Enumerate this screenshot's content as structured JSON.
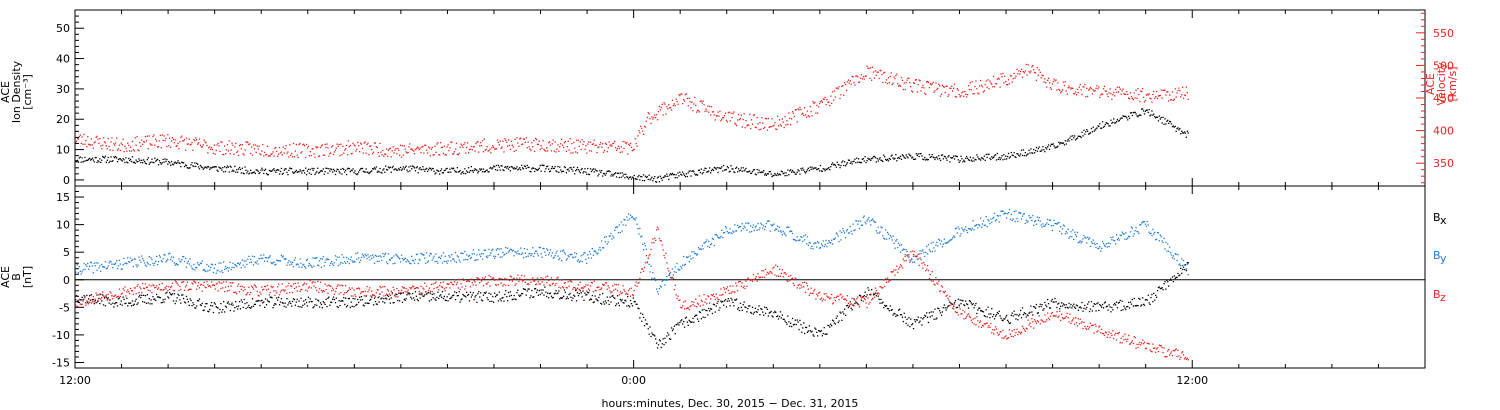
{
  "chart_data": [
    {
      "type": "scatter",
      "panel": "top",
      "xlim_hours": [
        -12.0,
        17.0
      ],
      "left_axis": {
        "label_lines": [
          "ACE",
          "Ion Density",
          "[cm⁻³]"
        ],
        "ylim": [
          -2,
          56
        ],
        "ticks": [
          0,
          10,
          20,
          30,
          40,
          50
        ]
      },
      "right_axis": {
        "label_lines": [
          "ACE",
          "Velocity",
          "[km/s]"
        ],
        "ylim": [
          315,
          585
        ],
        "ticks": [
          350,
          400,
          450,
          500,
          550
        ]
      },
      "series": [
        {
          "axis": "left",
          "color": "#000000",
          "x": [
            -12.0,
            -11.0,
            -10.0,
            -9.0,
            -8.0,
            -7.0,
            -6.0,
            -5.0,
            -4.0,
            -3.0,
            -2.0,
            -1.0,
            0.0,
            0.5,
            1.0,
            2.0,
            3.0,
            4.0,
            5.0,
            6.0,
            7.0,
            8.0,
            9.0,
            10.0,
            11.0,
            11.9
          ],
          "y": [
            7,
            7,
            6,
            4,
            3,
            3,
            3,
            4,
            3,
            4,
            4,
            3,
            1,
            0.5,
            2,
            4,
            2,
            4,
            7,
            8,
            7,
            8,
            11,
            18,
            23,
            15
          ]
        },
        {
          "axis": "right",
          "color": "#e8231f",
          "x": [
            -12.0,
            -11.0,
            -10.0,
            -9.0,
            -8.0,
            -7.0,
            -6.0,
            -5.0,
            -4.0,
            -3.0,
            -2.0,
            -1.0,
            -0.01,
            0.3,
            1.0,
            2.0,
            3.0,
            4.0,
            5.0,
            6.0,
            7.0,
            8.0,
            8.5,
            9.0,
            10.0,
            11.0,
            11.9
          ],
          "y": [
            388,
            378,
            386,
            375,
            372,
            370,
            375,
            370,
            374,
            378,
            380,
            376,
            375,
            420,
            450,
            420,
            410,
            440,
            490,
            470,
            460,
            480,
            495,
            470,
            460,
            455,
            458
          ]
        }
      ]
    },
    {
      "type": "scatter",
      "panel": "bottom",
      "xlim_hours": [
        -12.0,
        17.0
      ],
      "x_tick_labels": [
        {
          "at": -12,
          "label": "12:00"
        },
        {
          "at": 0,
          "label": "0:00"
        },
        {
          "at": 12,
          "label": "12:00"
        }
      ],
      "xlabel": "hours:minutes, Dec. 30, 2015 − Dec. 31, 2015",
      "left_axis": {
        "label_lines": [
          "ACE",
          "B",
          "[nT]"
        ],
        "ylim": [
          -16,
          17
        ],
        "ticks": [
          -15,
          -10,
          -5,
          0,
          5,
          10,
          15
        ]
      },
      "legend": [
        {
          "base": "B",
          "sub": "x",
          "color": "#000000"
        },
        {
          "base": "B",
          "sub": "y",
          "color": "#1f7ad4"
        },
        {
          "base": "B",
          "sub": "z",
          "color": "#e8231f"
        }
      ],
      "series": [
        {
          "name": "Bx",
          "color": "#000000",
          "x": [
            -12.0,
            -11.0,
            -10.0,
            -9.0,
            -8.0,
            -7.0,
            -6.0,
            -5.0,
            -4.0,
            -3.0,
            -2.0,
            -1.0,
            0.0,
            0.5,
            1.0,
            2.0,
            3.0,
            4.0,
            5.0,
            6.0,
            7.0,
            8.0,
            9.0,
            10.0,
            11.0,
            11.9
          ],
          "y": [
            -3,
            -4,
            -3,
            -5,
            -4,
            -4,
            -4,
            -3,
            -3,
            -3,
            -2,
            -3,
            -4,
            -12,
            -8,
            -4,
            -6,
            -10,
            -2,
            -8,
            -4,
            -7,
            -4,
            -5,
            -4,
            3
          ]
        },
        {
          "name": "By",
          "color": "#1f7ad4",
          "x": [
            -12.0,
            -11.0,
            -10.0,
            -9.0,
            -8.0,
            -7.0,
            -6.0,
            -5.0,
            -4.0,
            -3.0,
            -2.0,
            -1.0,
            0.0,
            0.5,
            1.0,
            2.0,
            3.0,
            4.0,
            5.0,
            6.0,
            7.0,
            8.0,
            9.0,
            10.0,
            11.0,
            11.9
          ],
          "y": [
            2,
            3,
            4,
            2,
            4,
            3,
            4,
            4,
            4,
            5,
            5,
            4,
            12,
            -2,
            3,
            9,
            10,
            6,
            11,
            4,
            9,
            12,
            10,
            6,
            10,
            2
          ]
        },
        {
          "name": "Bz",
          "color": "#e8231f",
          "x": [
            -12.0,
            -11.0,
            -10.0,
            -9.0,
            -8.0,
            -7.0,
            -6.0,
            -5.0,
            -4.0,
            -3.0,
            -2.0,
            -1.0,
            0.0,
            0.5,
            1.0,
            2.0,
            3.0,
            4.0,
            5.0,
            6.0,
            7.0,
            8.0,
            9.0,
            10.0,
            11.0,
            11.9
          ],
          "y": [
            -4,
            -2,
            -1,
            -1,
            -2,
            -1,
            -2,
            -2,
            -1,
            0,
            0,
            -1,
            -2,
            9,
            -5,
            -2,
            2,
            -3,
            -4,
            5,
            -6,
            -10,
            -6,
            -9,
            -12,
            -14
          ]
        }
      ]
    }
  ]
}
